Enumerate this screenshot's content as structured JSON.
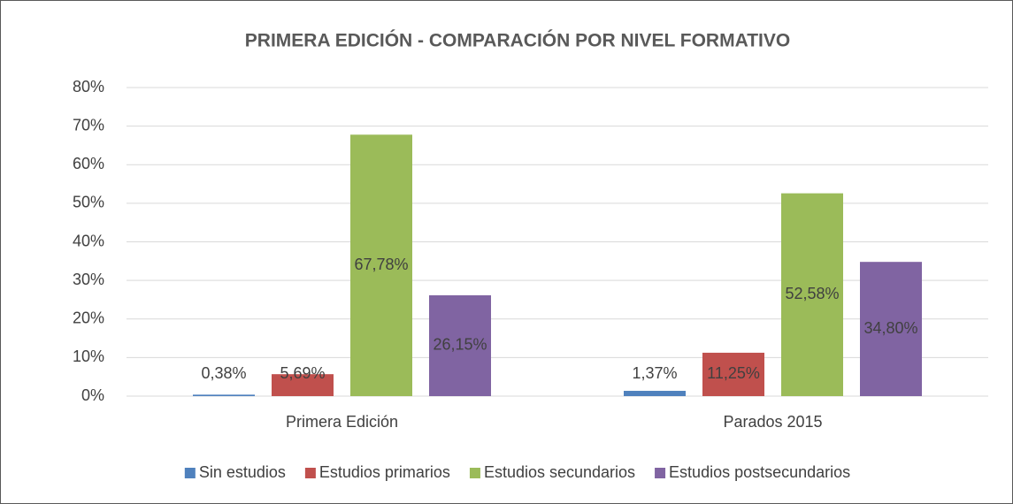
{
  "chart_data": {
    "type": "bar",
    "title": "PRIMERA EDICIÓN - COMPARACIÓN POR NIVEL FORMATIVO",
    "categories": [
      "Primera Edición",
      "Parados 2015"
    ],
    "series": [
      {
        "name": "Sin estudios",
        "color": "#4f81bd",
        "values": [
          0.38,
          1.37
        ],
        "value_labels": [
          "0,38%",
          "1,37%"
        ]
      },
      {
        "name": "Estudios primarios",
        "color": "#c0504d",
        "values": [
          5.69,
          11.25
        ],
        "value_labels": [
          "5,69%",
          "11,25%"
        ]
      },
      {
        "name": "Estudios secundarios",
        "color": "#9bbb59",
        "values": [
          67.78,
          52.58
        ],
        "value_labels": [
          "67,78%",
          "52,58%"
        ]
      },
      {
        "name": "Estudios postsecundarios",
        "color": "#8064a2",
        "values": [
          26.15,
          34.8
        ],
        "value_labels": [
          "26,15%",
          "34,80%"
        ]
      }
    ],
    "ylim": [
      0,
      80
    ],
    "yticks": [
      {
        "value": 0,
        "label": "0%"
      },
      {
        "value": 10,
        "label": "10%"
      },
      {
        "value": 20,
        "label": "20%"
      },
      {
        "value": 30,
        "label": "30%"
      },
      {
        "value": 40,
        "label": "40%"
      },
      {
        "value": 50,
        "label": "50%"
      },
      {
        "value": 60,
        "label": "60%"
      },
      {
        "value": 70,
        "label": "70%"
      },
      {
        "value": 80,
        "label": "80%"
      }
    ],
    "grid": true,
    "legend": "bottom"
  }
}
